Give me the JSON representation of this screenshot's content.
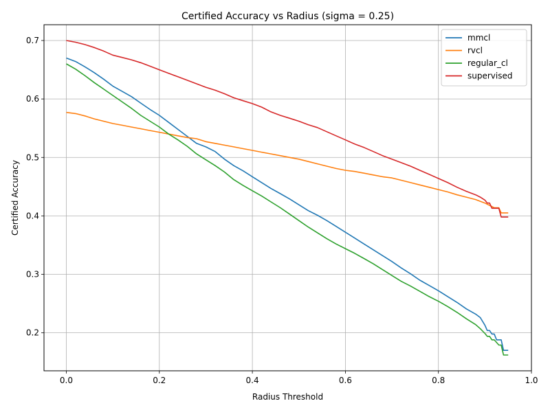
{
  "chart_data": {
    "type": "line",
    "title": "Certified Accuracy vs Radius (sigma = 0.25)",
    "xlabel": "Radius Threshold",
    "ylabel": "Certified Accuracy",
    "xlim": [
      -0.048,
      1.0
    ],
    "ylim": [
      0.135,
      0.727
    ],
    "xticks": [
      0.0,
      0.2,
      0.4,
      0.6,
      0.8,
      1.0
    ],
    "xtick_labels": [
      "0.0",
      "0.2",
      "0.4",
      "0.6",
      "0.8",
      "1.0"
    ],
    "yticks": [
      0.2,
      0.3,
      0.4,
      0.5,
      0.6,
      0.7
    ],
    "ytick_labels": [
      "0.2",
      "0.3",
      "0.4",
      "0.5",
      "0.6",
      "0.7"
    ],
    "grid": true,
    "legend_position": "top-right",
    "series": [
      {
        "name": "mmcl",
        "color": "#1f77b4",
        "x": [
          0.0,
          0.02,
          0.04,
          0.06,
          0.08,
          0.1,
          0.12,
          0.14,
          0.16,
          0.18,
          0.2,
          0.22,
          0.24,
          0.26,
          0.28,
          0.3,
          0.32,
          0.34,
          0.36,
          0.38,
          0.4,
          0.42,
          0.44,
          0.46,
          0.48,
          0.5,
          0.52,
          0.54,
          0.56,
          0.58,
          0.6,
          0.62,
          0.64,
          0.66,
          0.68,
          0.7,
          0.72,
          0.74,
          0.76,
          0.78,
          0.8,
          0.82,
          0.84,
          0.86,
          0.88,
          0.89,
          0.9,
          0.905,
          0.91,
          0.915,
          0.92,
          0.925,
          0.93,
          0.935,
          0.94,
          0.95
        ],
        "y": [
          0.67,
          0.664,
          0.655,
          0.645,
          0.634,
          0.622,
          0.613,
          0.604,
          0.593,
          0.582,
          0.572,
          0.56,
          0.548,
          0.536,
          0.524,
          0.518,
          0.51,
          0.497,
          0.486,
          0.477,
          0.467,
          0.457,
          0.447,
          0.438,
          0.429,
          0.419,
          0.409,
          0.401,
          0.392,
          0.382,
          0.372,
          0.362,
          0.352,
          0.342,
          0.332,
          0.322,
          0.311,
          0.301,
          0.29,
          0.281,
          0.272,
          0.262,
          0.252,
          0.241,
          0.232,
          0.226,
          0.213,
          0.204,
          0.204,
          0.198,
          0.198,
          0.188,
          0.188,
          0.188,
          0.17,
          0.17
        ]
      },
      {
        "name": "rvcl",
        "color": "#ff7f0e",
        "x": [
          0.0,
          0.02,
          0.04,
          0.06,
          0.08,
          0.1,
          0.12,
          0.14,
          0.16,
          0.18,
          0.2,
          0.22,
          0.24,
          0.26,
          0.28,
          0.3,
          0.32,
          0.34,
          0.36,
          0.38,
          0.4,
          0.42,
          0.44,
          0.46,
          0.48,
          0.5,
          0.52,
          0.54,
          0.56,
          0.58,
          0.6,
          0.62,
          0.64,
          0.66,
          0.68,
          0.7,
          0.72,
          0.74,
          0.76,
          0.78,
          0.8,
          0.82,
          0.84,
          0.86,
          0.88,
          0.9,
          0.91,
          0.92,
          0.93,
          0.935,
          0.94,
          0.95
        ],
        "y": [
          0.577,
          0.575,
          0.571,
          0.566,
          0.562,
          0.558,
          0.555,
          0.552,
          0.549,
          0.546,
          0.543,
          0.54,
          0.537,
          0.534,
          0.532,
          0.527,
          0.524,
          0.521,
          0.518,
          0.515,
          0.512,
          0.509,
          0.506,
          0.503,
          0.5,
          0.497,
          0.493,
          0.489,
          0.485,
          0.481,
          0.478,
          0.476,
          0.473,
          0.47,
          0.467,
          0.465,
          0.461,
          0.457,
          0.453,
          0.449,
          0.445,
          0.441,
          0.436,
          0.432,
          0.428,
          0.422,
          0.418,
          0.414,
          0.414,
          0.405,
          0.405,
          0.405
        ]
      },
      {
        "name": "regular_cl",
        "color": "#2ca02c",
        "x": [
          0.0,
          0.02,
          0.04,
          0.06,
          0.08,
          0.1,
          0.12,
          0.14,
          0.16,
          0.18,
          0.2,
          0.22,
          0.24,
          0.26,
          0.28,
          0.3,
          0.32,
          0.34,
          0.36,
          0.38,
          0.4,
          0.42,
          0.44,
          0.46,
          0.48,
          0.5,
          0.52,
          0.54,
          0.56,
          0.58,
          0.6,
          0.62,
          0.64,
          0.66,
          0.68,
          0.7,
          0.72,
          0.74,
          0.76,
          0.78,
          0.8,
          0.82,
          0.84,
          0.86,
          0.88,
          0.89,
          0.9,
          0.905,
          0.91,
          0.915,
          0.92,
          0.93,
          0.935,
          0.94,
          0.95
        ],
        "y": [
          0.66,
          0.651,
          0.64,
          0.628,
          0.617,
          0.606,
          0.595,
          0.584,
          0.572,
          0.562,
          0.552,
          0.54,
          0.53,
          0.519,
          0.506,
          0.496,
          0.486,
          0.475,
          0.462,
          0.452,
          0.443,
          0.434,
          0.424,
          0.414,
          0.403,
          0.392,
          0.381,
          0.371,
          0.361,
          0.352,
          0.344,
          0.336,
          0.327,
          0.318,
          0.308,
          0.298,
          0.288,
          0.28,
          0.271,
          0.262,
          0.254,
          0.245,
          0.235,
          0.224,
          0.214,
          0.207,
          0.199,
          0.194,
          0.194,
          0.188,
          0.188,
          0.179,
          0.179,
          0.162,
          0.162
        ]
      },
      {
        "name": "supervised",
        "color": "#d62728",
        "x": [
          0.0,
          0.02,
          0.04,
          0.06,
          0.08,
          0.1,
          0.12,
          0.14,
          0.16,
          0.18,
          0.2,
          0.22,
          0.24,
          0.26,
          0.28,
          0.3,
          0.32,
          0.34,
          0.36,
          0.38,
          0.4,
          0.42,
          0.44,
          0.46,
          0.48,
          0.5,
          0.52,
          0.54,
          0.56,
          0.58,
          0.6,
          0.62,
          0.64,
          0.66,
          0.68,
          0.7,
          0.72,
          0.74,
          0.76,
          0.78,
          0.8,
          0.82,
          0.84,
          0.86,
          0.88,
          0.89,
          0.9,
          0.905,
          0.91,
          0.915,
          0.92,
          0.93,
          0.935,
          0.94,
          0.95
        ],
        "y": [
          0.7,
          0.697,
          0.693,
          0.688,
          0.682,
          0.675,
          0.671,
          0.667,
          0.662,
          0.656,
          0.65,
          0.644,
          0.638,
          0.632,
          0.626,
          0.62,
          0.615,
          0.609,
          0.602,
          0.597,
          0.592,
          0.586,
          0.578,
          0.572,
          0.567,
          0.562,
          0.556,
          0.551,
          0.544,
          0.537,
          0.53,
          0.523,
          0.517,
          0.51,
          0.503,
          0.497,
          0.491,
          0.485,
          0.478,
          0.471,
          0.464,
          0.457,
          0.449,
          0.442,
          0.436,
          0.432,
          0.427,
          0.422,
          0.422,
          0.413,
          0.413,
          0.413,
          0.398,
          0.398,
          0.398
        ]
      }
    ]
  }
}
